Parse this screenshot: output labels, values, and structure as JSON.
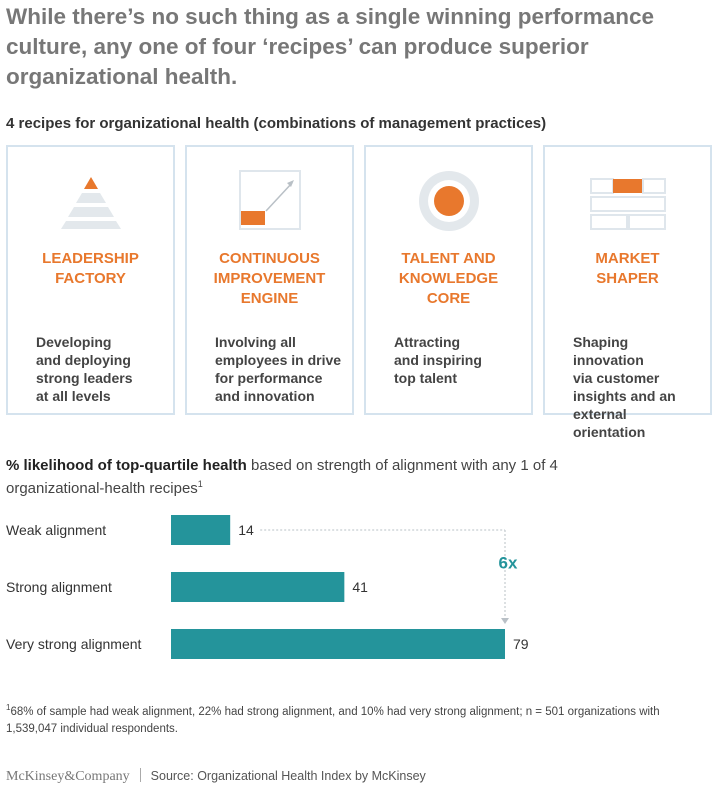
{
  "headline": "While there’s no such thing as a single winning performance culture, any one of four ‘recipes’ can produce superior organizational health.",
  "subheading": "4 recipes for organizational health (combinations of management practices)",
  "recipes": [
    {
      "title": "LEADERSHIP\nFACTORY",
      "description": "Developing\nand deploying\nstrong leaders\nat all levels",
      "icon": "pyramid-icon"
    },
    {
      "title": "CONTINUOUS\nIMPROVEMENT\nENGINE",
      "description": "Involving all\nemployees in drive\nfor performance\nand innovation",
      "icon": "upward-arrow-icon"
    },
    {
      "title": "TALENT AND\nKNOWLEDGE\nCORE",
      "description": "Attracting\nand inspiring\ntop talent",
      "icon": "target-circle-icon"
    },
    {
      "title": "MARKET\nSHAPER",
      "description": "Shaping innovation\nvia customer\ninsights and an\nexternal orientation",
      "icon": "grid-blocks-icon"
    }
  ],
  "chart_title_bold": "% likelihood of top-quartile health",
  "chart_title_rest": " based on strength of alignment with any 1 of 4 organizational-health recipes",
  "chart_title_marker": "1",
  "chart_data": {
    "type": "bar",
    "orientation": "horizontal",
    "categories": [
      "Weak alignment",
      "Strong alignment",
      "Very strong alignment"
    ],
    "values": [
      14,
      41,
      79
    ],
    "xlim": [
      0,
      100
    ],
    "annotation": "6x",
    "grid": false
  },
  "footnote_marker": "1",
  "footnote": "68% of sample had weak alignment, 22% had strong alignment, and 10% had very strong alignment; n = 501 organizations with 1,539,047 individual respondents.",
  "footer": {
    "brand": "McKinsey&Company",
    "source": "Source: Organizational Health Index by McKinsey"
  },
  "colors": {
    "accent": "#e8782d",
    "bar": "#24949b",
    "card_border": "#d5e3ee",
    "icon_light": "#e3e8ec"
  }
}
